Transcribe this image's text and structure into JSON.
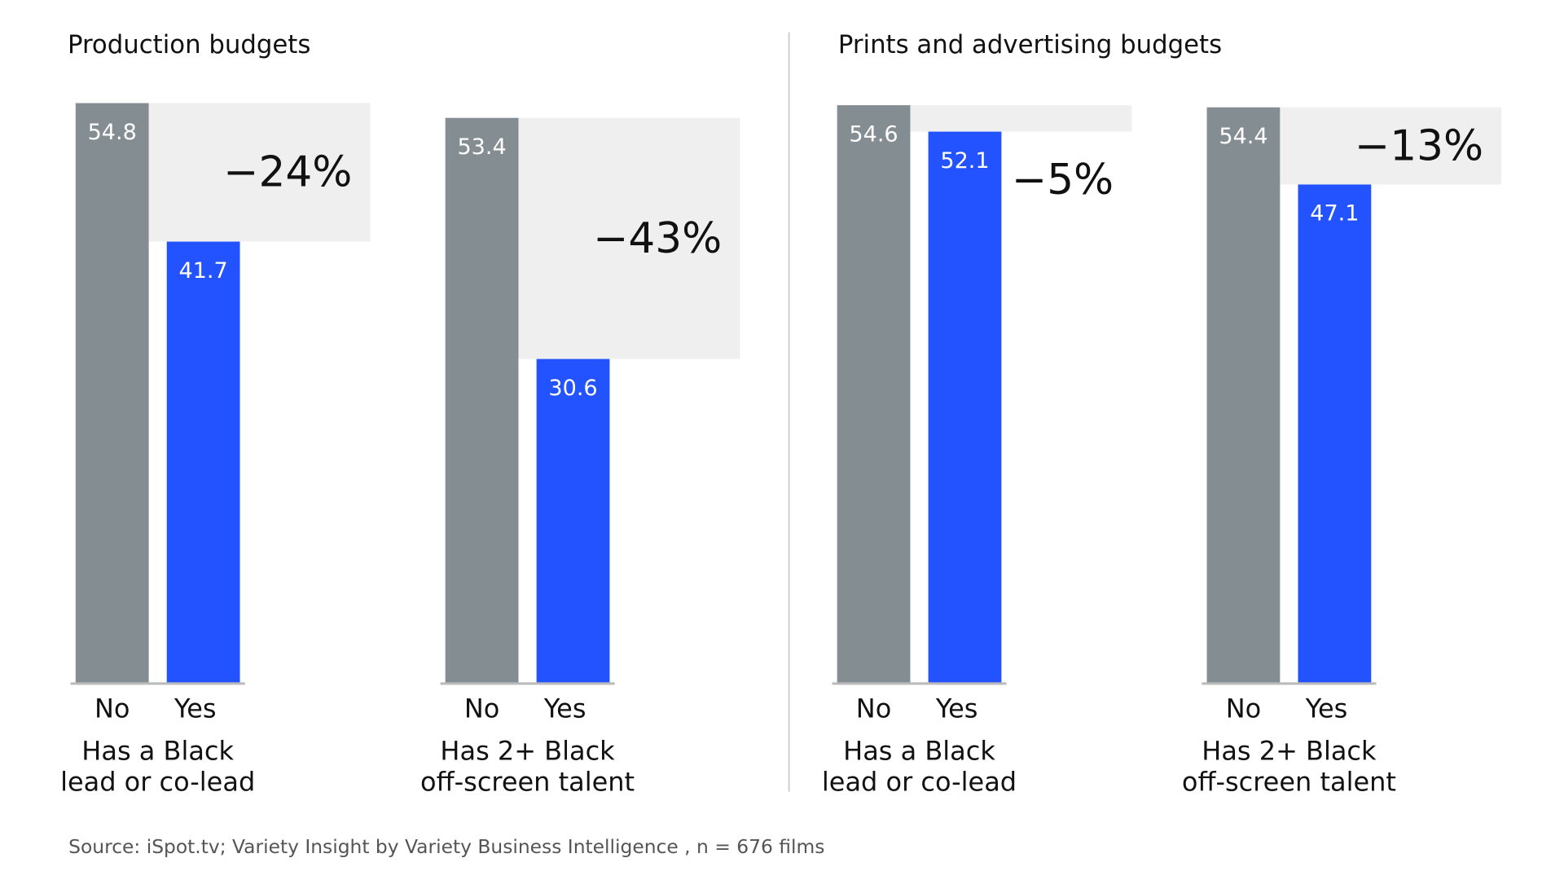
{
  "chart_data": [
    {
      "type": "bar",
      "title": "Production budgets",
      "colors": {
        "No": "#848d92",
        "Yes": "#2353ff",
        "diff_box": "#efefef"
      },
      "groups": [
        {
          "label_line1": "Has a Black",
          "label_line2": "lead or co-lead",
          "categories": [
            "No",
            "Yes"
          ],
          "values": [
            54.8,
            41.7
          ],
          "labels": [
            "54.8",
            "41.7"
          ],
          "difference": "−24%"
        },
        {
          "label_line1": "Has 2+ Black",
          "label_line2": "off-screen talent",
          "categories": [
            "No",
            "Yes"
          ],
          "values": [
            53.4,
            30.6
          ],
          "labels": [
            "53.4",
            "30.6"
          ],
          "difference": "−43%"
        }
      ]
    },
    {
      "type": "bar",
      "title": "Prints and advertising budgets",
      "colors": {
        "No": "#848d92",
        "Yes": "#2353ff",
        "diff_box": "#efefef"
      },
      "groups": [
        {
          "label_line1": "Has a Black",
          "label_line2": "lead or co-lead",
          "categories": [
            "No",
            "Yes"
          ],
          "values": [
            54.6,
            52.1
          ],
          "labels": [
            "54.6",
            "52.1"
          ],
          "difference": "−5%"
        },
        {
          "label_line1": "Has 2+ Black",
          "label_line2": "off-screen talent",
          "categories": [
            "No",
            "Yes"
          ],
          "values": [
            54.4,
            47.1
          ],
          "labels": [
            "54.4",
            "47.1"
          ],
          "difference": "−13%"
        }
      ]
    }
  ],
  "source": "Source: iSpot.tv; Variety Insight by Variety Business Intelligence ,",
  "n_note": "n = 676 films"
}
